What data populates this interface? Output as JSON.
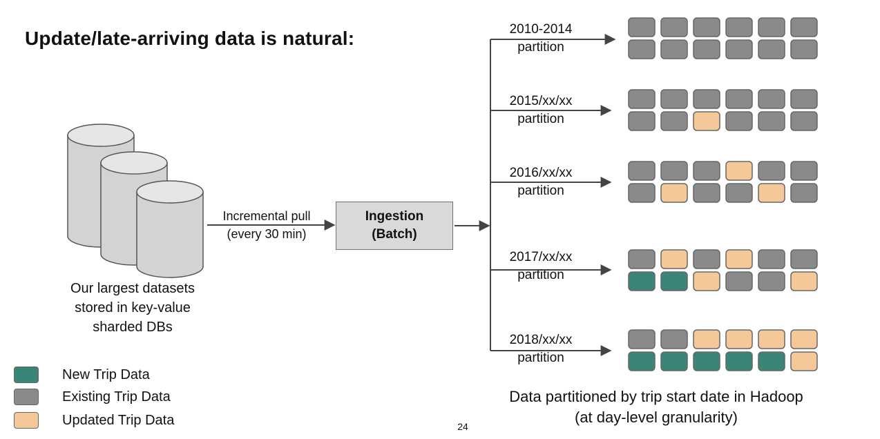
{
  "title": "Update/late-arriving data is natural:",
  "databases": {
    "caption_lines": [
      "Our largest datasets",
      "stored in key-value",
      "sharded DBs"
    ]
  },
  "pull": {
    "line1": "Incremental pull",
    "line2": "(every 30 min)"
  },
  "ingestion": {
    "line1": "Ingestion",
    "line2": "(Batch)"
  },
  "colors": {
    "new": "#3b8578",
    "existing": "#8a8a8a",
    "updated": "#f5c89a",
    "cell_border": "#666666",
    "db_fill": "#d3d3d3",
    "db_top": "#e6e6e6"
  },
  "partitions": [
    {
      "label_line1": "2010-2014",
      "label_line2": "partition",
      "rows": [
        [
          "E",
          "E",
          "E",
          "E",
          "E",
          "E"
        ],
        [
          "E",
          "E",
          "E",
          "E",
          "E",
          "E"
        ]
      ]
    },
    {
      "label_line1": "2015/xx/xx",
      "label_line2": "partition",
      "rows": [
        [
          "E",
          "E",
          "E",
          "E",
          "E",
          "E"
        ],
        [
          "E",
          "E",
          "U",
          "E",
          "E",
          "E"
        ]
      ]
    },
    {
      "label_line1": "2016/xx/xx",
      "label_line2": "partition",
      "rows": [
        [
          "E",
          "E",
          "E",
          "U",
          "E",
          "E"
        ],
        [
          "E",
          "U",
          "E",
          "E",
          "U",
          "E"
        ]
      ]
    },
    {
      "label_line1": "2017/xx/xx",
      "label_line2": "partition",
      "rows": [
        [
          "E",
          "U",
          "E",
          "U",
          "E",
          "E"
        ],
        [
          "N",
          "N",
          "U",
          "E",
          "E",
          "U"
        ]
      ]
    },
    {
      "label_line1": "2018/xx/xx",
      "label_line2": "partition",
      "rows": [
        [
          "E",
          "E",
          "U",
          "U",
          "U",
          "U"
        ],
        [
          "N",
          "N",
          "N",
          "N",
          "N",
          "U"
        ]
      ]
    }
  ],
  "footer": {
    "line1": "Data partitioned by trip start date in Hadoop",
    "line2": "(at day-level granularity)"
  },
  "legend": [
    {
      "key": "N",
      "label": "New Trip Data"
    },
    {
      "key": "E",
      "label": "Existing Trip Data"
    },
    {
      "key": "U",
      "label": "Updated Trip Data"
    }
  ],
  "page_number": "24"
}
